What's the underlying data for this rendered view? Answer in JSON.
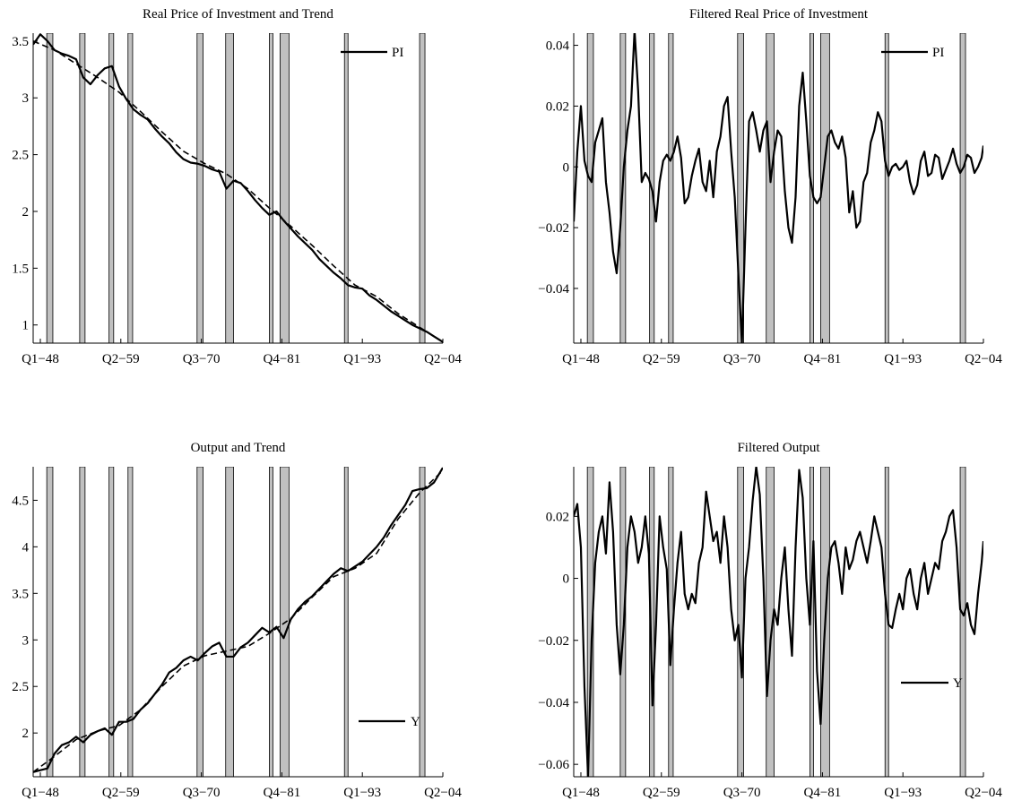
{
  "recessions": [
    [
      1948.9,
      1949.75
    ],
    [
      1953.5,
      1954.25
    ],
    [
      1957.6,
      1958.25
    ],
    [
      1960.25,
      1960.9
    ],
    [
      1969.9,
      1970.75
    ],
    [
      1973.9,
      1975.0
    ],
    [
      1980.0,
      1980.5
    ],
    [
      1981.5,
      1982.75
    ],
    [
      1990.5,
      1991.0
    ],
    [
      2001.0,
      2001.75
    ]
  ],
  "shade_color": "#c0c0c0",
  "xticks": [
    {
      "label": "Q1−48",
      "x": 1948.0
    },
    {
      "label": "Q2−59",
      "x": 1959.25
    },
    {
      "label": "Q3−70",
      "x": 1970.5
    },
    {
      "label": "Q4−81",
      "x": 1981.75
    },
    {
      "label": "Q1−93",
      "x": 1993.0
    },
    {
      "label": "Q2−04",
      "x": 2004.25
    }
  ],
  "chart_data": [
    {
      "type": "line",
      "title": "Real Price of Investment and Trend",
      "xlim": [
        1947.0,
        2004.25
      ],
      "ylim": [
        0.84,
        3.57
      ],
      "yticks": [
        1,
        1.5,
        2,
        2.5,
        3,
        3.5
      ],
      "ytick_labels": [
        "1",
        "1.5",
        "2",
        "2.5",
        "3",
        "3.5"
      ],
      "legend": {
        "position": "top-right"
      },
      "series": [
        {
          "name": "PI",
          "style": "solid",
          "x": [
            1947.0,
            1948.0,
            1949.0,
            1950.0,
            1951.0,
            1952.0,
            1953.0,
            1954.0,
            1955.0,
            1956.0,
            1957.0,
            1958.0,
            1959.0,
            1960.0,
            1961.0,
            1962.0,
            1963.0,
            1964.0,
            1965.0,
            1966.0,
            1967.0,
            1968.0,
            1969.0,
            1970.0,
            1971.0,
            1972.0,
            1973.0,
            1974.0,
            1975.0,
            1976.0,
            1977.0,
            1978.0,
            1979.0,
            1980.0,
            1981.0,
            1982.0,
            1983.0,
            1984.0,
            1985.0,
            1986.0,
            1987.0,
            1988.0,
            1989.0,
            1990.0,
            1991.0,
            1992.0,
            1993.0,
            1994.0,
            1995.0,
            1996.0,
            1997.0,
            1998.0,
            1999.0,
            2000.0,
            2001.0,
            2002.0,
            2003.0,
            2004.25
          ],
          "y": [
            3.47,
            3.56,
            3.5,
            3.42,
            3.39,
            3.37,
            3.34,
            3.18,
            3.12,
            3.2,
            3.26,
            3.28,
            3.1,
            2.99,
            2.9,
            2.85,
            2.81,
            2.73,
            2.66,
            2.6,
            2.52,
            2.46,
            2.43,
            2.42,
            2.4,
            2.37,
            2.35,
            2.2,
            2.27,
            2.25,
            2.18,
            2.1,
            2.03,
            1.97,
            2.0,
            1.92,
            1.85,
            1.78,
            1.72,
            1.66,
            1.58,
            1.52,
            1.46,
            1.41,
            1.35,
            1.33,
            1.32,
            1.26,
            1.22,
            1.17,
            1.12,
            1.08,
            1.04,
            1.0,
            0.97,
            0.94,
            0.9,
            0.85
          ]
        },
        {
          "name": "",
          "style": "dashed",
          "x": [
            1947.0,
            1950.0,
            1953.0,
            1956.0,
            1959.0,
            1962.0,
            1965.0,
            1968.0,
            1971.0,
            1974.0,
            1977.0,
            1980.0,
            1983.0,
            1986.0,
            1989.0,
            1992.0,
            1995.0,
            1998.0,
            2001.0,
            2004.25
          ],
          "y": [
            3.5,
            3.42,
            3.3,
            3.18,
            3.05,
            2.88,
            2.7,
            2.53,
            2.42,
            2.33,
            2.2,
            2.03,
            1.87,
            1.7,
            1.52,
            1.35,
            1.25,
            1.1,
            0.98,
            0.85
          ]
        }
      ]
    },
    {
      "type": "line",
      "title": "Filtered Real Price of Investment",
      "xlim": [
        1947.0,
        2004.25
      ],
      "ylim": [
        -0.058,
        0.044
      ],
      "yticks": [
        -0.04,
        -0.02,
        0,
        0.02,
        0.04
      ],
      "ytick_labels": [
        "−0.04",
        "−0.02",
        "0",
        "0.02",
        "0.04"
      ],
      "legend": {
        "position": "top-right"
      },
      "series": [
        {
          "name": "PI",
          "style": "solid",
          "x": [
            1947.0,
            1947.5,
            1948.0,
            1948.5,
            1949.0,
            1949.5,
            1950.0,
            1950.5,
            1951.0,
            1951.5,
            1952.0,
            1952.5,
            1953.0,
            1953.5,
            1954.0,
            1954.5,
            1955.0,
            1955.5,
            1956.0,
            1956.5,
            1957.0,
            1957.5,
            1958.0,
            1958.5,
            1959.0,
            1959.5,
            1960.0,
            1960.5,
            1961.0,
            1961.5,
            1962.0,
            1962.5,
            1963.0,
            1963.5,
            1964.0,
            1964.5,
            1965.0,
            1965.5,
            1966.0,
            1966.5,
            1967.0,
            1967.5,
            1968.0,
            1968.5,
            1969.0,
            1969.5,
            1970.0,
            1970.5,
            1971.0,
            1971.5,
            1972.0,
            1972.5,
            1973.0,
            1973.5,
            1974.0,
            1974.5,
            1975.0,
            1975.5,
            1976.0,
            1976.5,
            1977.0,
            1977.5,
            1978.0,
            1978.5,
            1979.0,
            1979.5,
            1980.0,
            1980.5,
            1981.0,
            1981.5,
            1982.0,
            1982.5,
            1983.0,
            1983.5,
            1984.0,
            1984.5,
            1985.0,
            1985.5,
            1986.0,
            1986.5,
            1987.0,
            1987.5,
            1988.0,
            1988.5,
            1989.0,
            1989.5,
            1990.0,
            1990.5,
            1991.0,
            1991.5,
            1992.0,
            1992.5,
            1993.0,
            1993.5,
            1994.0,
            1994.5,
            1995.0,
            1995.5,
            1996.0,
            1996.5,
            1997.0,
            1997.5,
            1998.0,
            1998.5,
            1999.0,
            1999.5,
            2000.0,
            2000.5,
            2001.0,
            2001.5,
            2002.0,
            2002.5,
            2003.0,
            2003.5,
            2004.0,
            2004.25
          ],
          "y": [
            -0.018,
            0.005,
            0.02,
            0.002,
            -0.003,
            -0.005,
            0.008,
            0.012,
            0.016,
            -0.005,
            -0.015,
            -0.028,
            -0.035,
            -0.02,
            0.0,
            0.012,
            0.02,
            0.045,
            0.025,
            -0.005,
            -0.002,
            -0.004,
            -0.008,
            -0.018,
            -0.005,
            0.002,
            0.004,
            0.002,
            0.005,
            0.01,
            0.003,
            -0.012,
            -0.01,
            -0.003,
            0.002,
            0.006,
            -0.005,
            -0.008,
            0.002,
            -0.01,
            0.005,
            0.01,
            0.02,
            0.023,
            0.005,
            -0.01,
            -0.035,
            -0.058,
            -0.02,
            0.015,
            0.018,
            0.012,
            0.005,
            0.012,
            0.015,
            -0.005,
            0.005,
            0.012,
            0.01,
            -0.008,
            -0.02,
            -0.025,
            -0.01,
            0.02,
            0.031,
            0.015,
            -0.003,
            -0.01,
            -0.012,
            -0.01,
            0.0,
            0.01,
            0.012,
            0.008,
            0.006,
            0.01,
            0.003,
            -0.015,
            -0.008,
            -0.02,
            -0.018,
            -0.005,
            -0.002,
            0.008,
            0.012,
            0.018,
            0.015,
            0.002,
            -0.003,
            0.0,
            0.001,
            -0.001,
            0.0,
            0.002,
            -0.005,
            -0.009,
            -0.006,
            0.002,
            0.005,
            -0.003,
            -0.002,
            0.004,
            0.003,
            -0.004,
            -0.001,
            0.002,
            0.006,
            0.001,
            -0.002,
            0.0,
            0.004,
            0.003,
            -0.002,
            0.0,
            0.003,
            0.007
          ]
        }
      ]
    },
    {
      "type": "line",
      "title": "Output and Trend",
      "xlim": [
        1947.0,
        2004.25
      ],
      "ylim": [
        1.53,
        4.86
      ],
      "yticks": [
        2,
        2.5,
        3,
        3.5,
        4,
        4.5
      ],
      "ytick_labels": [
        "2",
        "2.5",
        "3",
        "3.5",
        "4",
        "4.5"
      ],
      "legend": {
        "position": "bottom-right"
      },
      "series": [
        {
          "name": "Y",
          "style": "solid",
          "x": [
            1947.0,
            1948.0,
            1949.0,
            1950.0,
            1951.0,
            1952.0,
            1953.0,
            1954.0,
            1955.0,
            1956.0,
            1957.0,
            1958.0,
            1959.0,
            1960.0,
            1961.0,
            1962.0,
            1963.0,
            1964.0,
            1965.0,
            1966.0,
            1967.0,
            1968.0,
            1969.0,
            1970.0,
            1971.0,
            1972.0,
            1973.0,
            1974.0,
            1975.0,
            1976.0,
            1977.0,
            1978.0,
            1979.0,
            1980.0,
            1981.0,
            1982.0,
            1983.0,
            1984.0,
            1985.0,
            1986.0,
            1987.0,
            1988.0,
            1989.0,
            1990.0,
            1991.0,
            1992.0,
            1993.0,
            1994.0,
            1995.0,
            1996.0,
            1997.0,
            1998.0,
            1999.0,
            2000.0,
            2001.0,
            2002.0,
            2003.0,
            2004.25
          ],
          "y": [
            1.58,
            1.6,
            1.62,
            1.78,
            1.87,
            1.9,
            1.96,
            1.9,
            1.98,
            2.02,
            2.05,
            1.98,
            2.12,
            2.12,
            2.15,
            2.25,
            2.32,
            2.42,
            2.52,
            2.65,
            2.7,
            2.78,
            2.82,
            2.78,
            2.86,
            2.93,
            2.97,
            2.82,
            2.82,
            2.92,
            2.97,
            3.05,
            3.13,
            3.08,
            3.14,
            3.02,
            3.22,
            3.33,
            3.41,
            3.47,
            3.55,
            3.63,
            3.71,
            3.77,
            3.74,
            3.79,
            3.84,
            3.92,
            4.0,
            4.1,
            4.23,
            4.34,
            4.45,
            4.6,
            4.62,
            4.63,
            4.69,
            4.85
          ]
        },
        {
          "name": "",
          "style": "dashed",
          "x": [
            1947.0,
            1950.0,
            1953.0,
            1956.0,
            1959.0,
            1962.0,
            1965.0,
            1968.0,
            1971.0,
            1974.0,
            1977.0,
            1980.0,
            1983.0,
            1986.0,
            1989.0,
            1992.0,
            1995.0,
            1998.0,
            2001.0,
            2004.25
          ],
          "y": [
            1.58,
            1.75,
            1.93,
            2.02,
            2.08,
            2.25,
            2.5,
            2.72,
            2.83,
            2.88,
            2.93,
            3.07,
            3.23,
            3.46,
            3.68,
            3.77,
            3.93,
            4.3,
            4.58,
            4.82
          ]
        }
      ]
    },
    {
      "type": "line",
      "title": "Filtered Output",
      "xlim": [
        1947.0,
        2004.25
      ],
      "ylim": [
        -0.064,
        0.036
      ],
      "yticks": [
        -0.06,
        -0.04,
        -0.02,
        0,
        0.02
      ],
      "ytick_labels": [
        "−0.06",
        "−0.04",
        "−0.02",
        "0",
        "0.02"
      ],
      "legend": {
        "position": "bottom-right"
      },
      "series": [
        {
          "name": "Y",
          "style": "solid",
          "x": [
            1947.0,
            1947.5,
            1948.0,
            1948.5,
            1949.0,
            1949.5,
            1950.0,
            1950.5,
            1951.0,
            1951.5,
            1952.0,
            1952.5,
            1953.0,
            1953.5,
            1954.0,
            1954.5,
            1955.0,
            1955.5,
            1956.0,
            1956.5,
            1957.0,
            1957.5,
            1958.0,
            1958.5,
            1959.0,
            1959.5,
            1960.0,
            1960.5,
            1961.0,
            1961.5,
            1962.0,
            1962.5,
            1963.0,
            1963.5,
            1964.0,
            1964.5,
            1965.0,
            1965.5,
            1966.0,
            1966.5,
            1967.0,
            1967.5,
            1968.0,
            1968.5,
            1969.0,
            1969.5,
            1970.0,
            1970.5,
            1971.0,
            1971.5,
            1972.0,
            1972.5,
            1973.0,
            1973.5,
            1974.0,
            1974.5,
            1975.0,
            1975.5,
            1976.0,
            1976.5,
            1977.0,
            1977.5,
            1978.0,
            1978.5,
            1979.0,
            1979.5,
            1980.0,
            1980.5,
            1981.0,
            1981.5,
            1982.0,
            1982.5,
            1983.0,
            1983.5,
            1984.0,
            1984.5,
            1985.0,
            1985.5,
            1986.0,
            1986.5,
            1987.0,
            1987.5,
            1988.0,
            1988.5,
            1989.0,
            1989.5,
            1990.0,
            1990.5,
            1991.0,
            1991.5,
            1992.0,
            1992.5,
            1993.0,
            1993.5,
            1994.0,
            1994.5,
            1995.0,
            1995.5,
            1996.0,
            1996.5,
            1997.0,
            1997.5,
            1998.0,
            1998.5,
            1999.0,
            1999.5,
            2000.0,
            2000.5,
            2001.0,
            2001.5,
            2002.0,
            2002.5,
            2003.0,
            2003.5,
            2004.0,
            2004.25
          ],
          "y": [
            0.02,
            0.024,
            0.01,
            -0.035,
            -0.064,
            -0.02,
            0.005,
            0.015,
            0.02,
            0.008,
            0.031,
            0.015,
            -0.015,
            -0.031,
            -0.015,
            0.01,
            0.02,
            0.015,
            0.005,
            0.01,
            0.02,
            0.008,
            -0.041,
            -0.015,
            0.02,
            0.01,
            0.003,
            -0.028,
            -0.01,
            0.005,
            0.015,
            -0.005,
            -0.01,
            -0.005,
            -0.008,
            0.005,
            0.01,
            0.028,
            0.02,
            0.012,
            0.015,
            0.005,
            0.02,
            0.01,
            -0.01,
            -0.02,
            -0.015,
            -0.032,
            0.0,
            0.01,
            0.025,
            0.036,
            0.027,
            0.0,
            -0.038,
            -0.02,
            -0.01,
            -0.015,
            0.0,
            0.01,
            -0.01,
            -0.025,
            0.01,
            0.035,
            0.026,
            0.0,
            -0.015,
            0.012,
            -0.03,
            -0.047,
            -0.02,
            0.0,
            0.01,
            0.012,
            0.005,
            -0.005,
            0.01,
            0.003,
            0.006,
            0.012,
            0.015,
            0.01,
            0.005,
            0.012,
            0.02,
            0.015,
            0.01,
            -0.005,
            -0.015,
            -0.016,
            -0.01,
            -0.005,
            -0.01,
            0.0,
            0.003,
            -0.005,
            -0.01,
            0.0,
            0.005,
            -0.005,
            0.0,
            0.005,
            0.003,
            0.012,
            0.015,
            0.02,
            0.022,
            0.01,
            -0.01,
            -0.012,
            -0.008,
            -0.015,
            -0.018,
            -0.005,
            0.005,
            0.012
          ]
        }
      ]
    }
  ]
}
